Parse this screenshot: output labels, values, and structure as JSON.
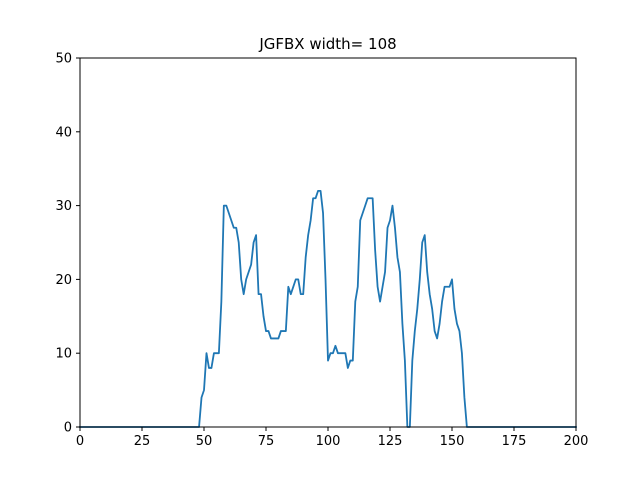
{
  "chart_data": {
    "type": "line",
    "title": "JGFBX width= 108",
    "xlabel": "",
    "ylabel": "",
    "xlim": [
      0,
      200
    ],
    "ylim": [
      0,
      50
    ],
    "xticks": [
      0,
      25,
      50,
      75,
      100,
      125,
      150,
      175,
      200
    ],
    "yticks": [
      0,
      10,
      20,
      30,
      40,
      50
    ],
    "grid": false,
    "line_color": "#1f77b4",
    "series": [
      {
        "x": [
          0,
          48,
          49,
          50,
          51,
          52,
          53,
          54,
          55,
          56,
          57,
          58,
          59,
          60,
          61,
          62,
          63,
          64,
          65,
          66,
          67,
          68,
          69,
          70,
          71,
          72,
          73,
          74,
          75,
          76,
          77,
          78,
          79,
          80,
          81,
          82,
          83,
          84,
          85,
          86,
          87,
          88,
          89,
          90,
          91,
          92,
          93,
          94,
          95,
          96,
          97,
          98,
          99,
          100,
          101,
          102,
          103,
          104,
          105,
          106,
          107,
          108,
          109,
          110,
          111,
          112,
          113,
          114,
          115,
          116,
          117,
          118,
          119,
          120,
          121,
          122,
          123,
          124,
          125,
          126,
          127,
          128,
          129,
          130,
          131,
          132,
          133,
          134,
          135,
          136,
          137,
          138,
          139,
          140,
          141,
          142,
          143,
          144,
          145,
          146,
          147,
          148,
          149,
          150,
          151,
          152,
          153,
          154,
          155,
          156,
          157,
          200
        ],
        "y": [
          0,
          0,
          4,
          5,
          10,
          8,
          8,
          10,
          10,
          10,
          17,
          30,
          30,
          29,
          28,
          27,
          27,
          25,
          20,
          18,
          20,
          21,
          22,
          25,
          26,
          18,
          18,
          15,
          13,
          13,
          12,
          12,
          12,
          12,
          13,
          13,
          13,
          19,
          18,
          19,
          20,
          20,
          18,
          18,
          23,
          26,
          28,
          31,
          31,
          32,
          32,
          29,
          20,
          9,
          10,
          10,
          11,
          10,
          10,
          10,
          10,
          8,
          9,
          9,
          17,
          19,
          28,
          29,
          30,
          31,
          31,
          31,
          24,
          19,
          17,
          19,
          21,
          27,
          28,
          30,
          27,
          23,
          21,
          14,
          9,
          0,
          0,
          9,
          13,
          16,
          20,
          25,
          26,
          21,
          18,
          16,
          13,
          12,
          14,
          17,
          19,
          19,
          19,
          20,
          16,
          14,
          13,
          10,
          4,
          0,
          0,
          0
        ]
      }
    ]
  }
}
